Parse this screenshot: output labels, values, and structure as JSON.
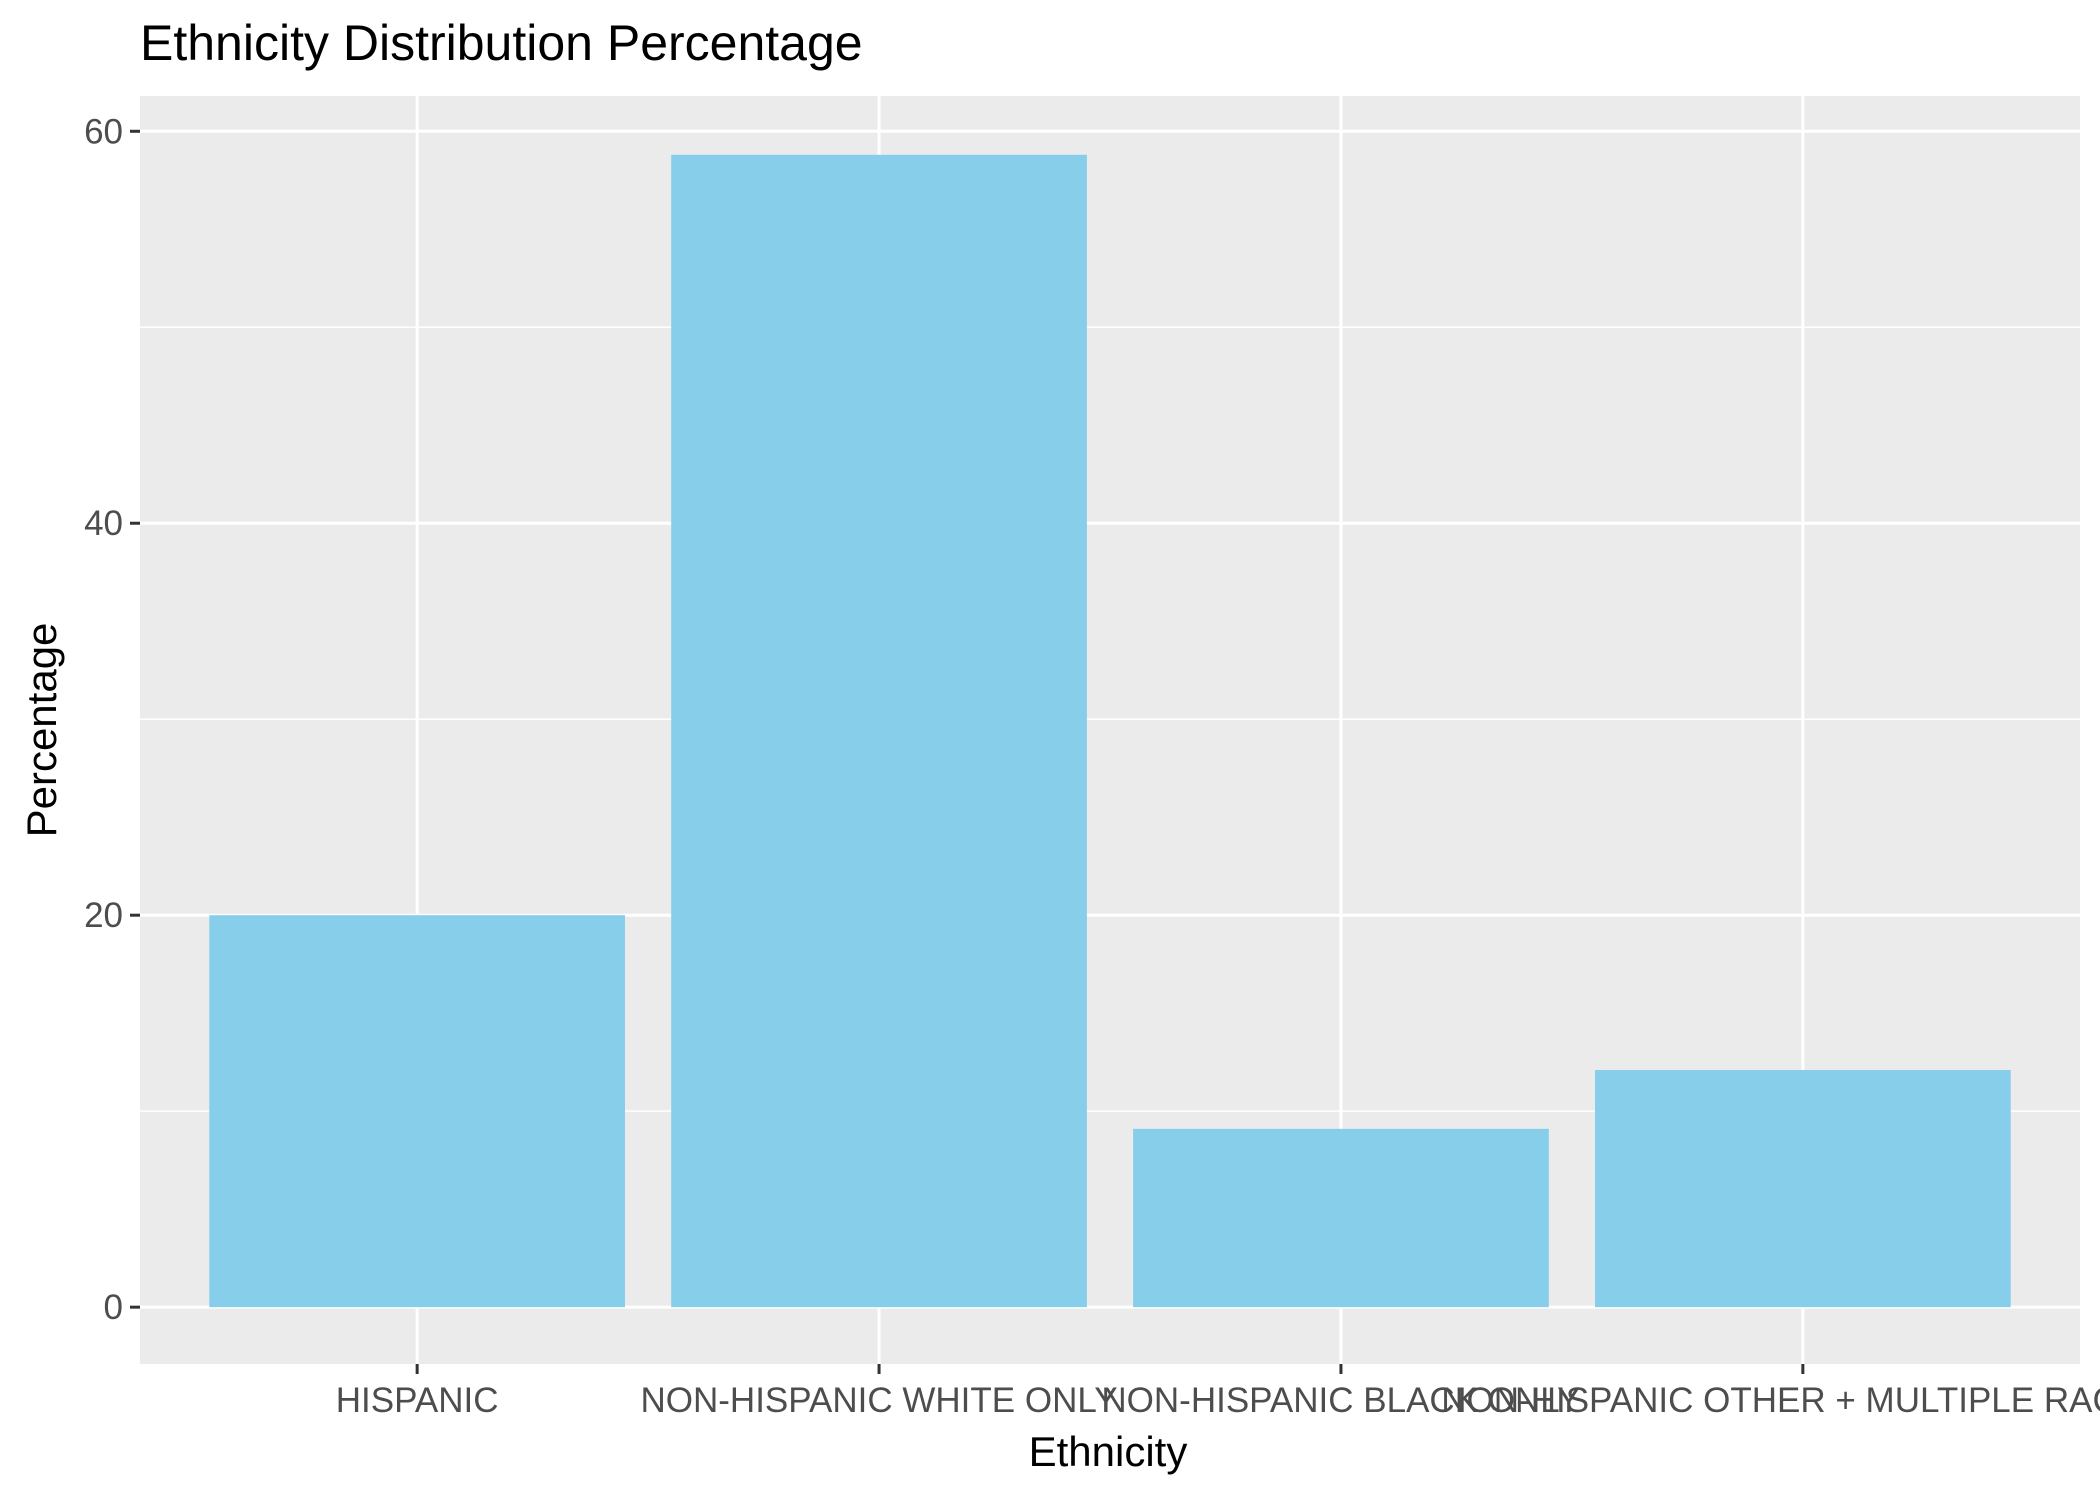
{
  "chart_data": {
    "type": "bar",
    "title": "Ethnicity Distribution Percentage",
    "xlabel": "Ethnicity",
    "ylabel": "Percentage",
    "categories": [
      "HISPANIC",
      "NON-HISPANIC WHITE ONLY",
      "NON-HISPANIC BLACK ONLY",
      "NON-HISPANIC OTHER + MULTIPLE RACES"
    ],
    "values": [
      20.0,
      58.8,
      9.1,
      12.1
    ],
    "ylim": [
      -2.9,
      61.8
    ],
    "yticks": [
      0,
      20,
      40,
      60
    ],
    "grid": true,
    "legend": "none",
    "colors": {
      "bar": "#87CEEB",
      "panel": "#EBEBEB",
      "grid": "#FFFFFF",
      "tick": "#333333"
    }
  }
}
